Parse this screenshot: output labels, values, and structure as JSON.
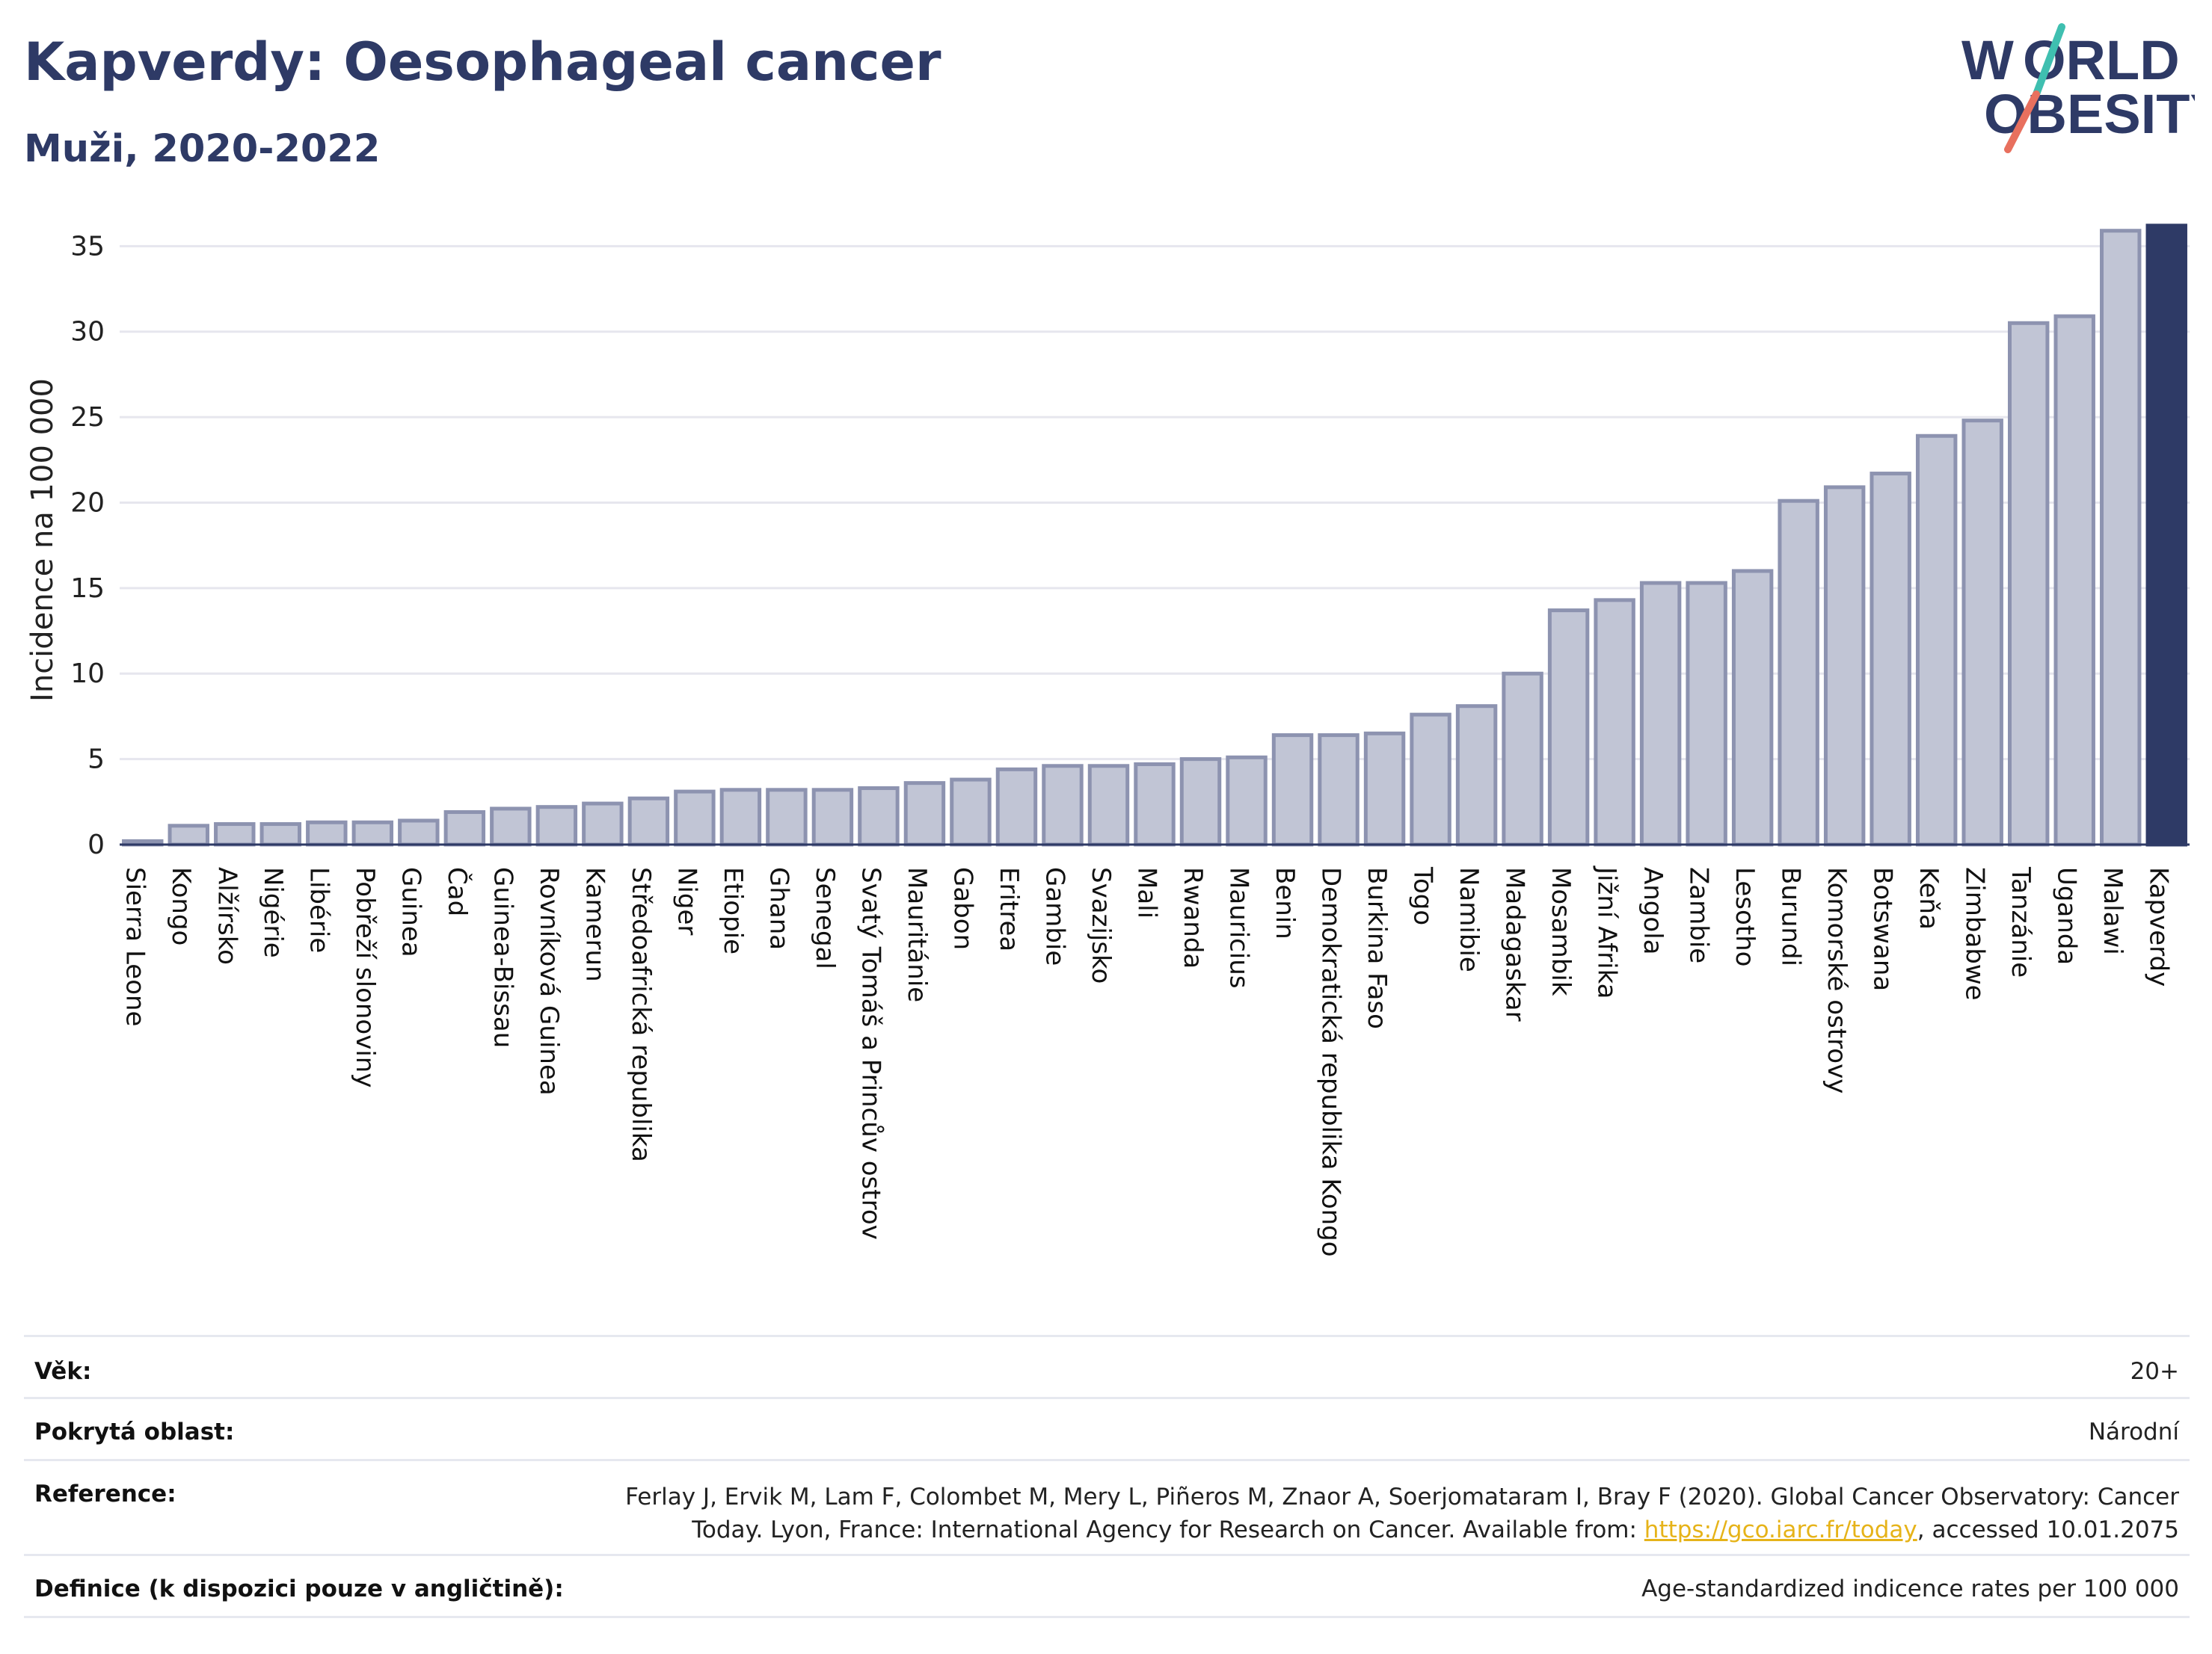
{
  "header": {
    "title": "Kapverdy: Oesophageal cancer",
    "subtitle": "Muži, 2020-2022"
  },
  "logo": {
    "line1": "WORLD",
    "line2": "OBESITY",
    "text_color": "#2e3a66",
    "accent_teal": "#3fbfb0",
    "accent_red": "#e8705e"
  },
  "colors": {
    "bar_fill": "#c1c5d5",
    "bar_stroke": "#8d93b0",
    "highlight": "#2e3a66",
    "grid": "#e6e6ee"
  },
  "chart_data": {
    "type": "bar",
    "ylabel": "Incidence na 100 000",
    "ylim": [
      0,
      36.5
    ],
    "yticks": [
      0,
      5,
      10,
      15,
      20,
      25,
      30,
      35
    ],
    "grid": true,
    "highlight_category": "Kapverdy",
    "categories": [
      "Sierra Leone",
      "Kongo",
      "Alžírsko",
      "Nigérie",
      "Libérie",
      "Pobřeží slonoviny",
      "Guinea",
      "Čad",
      "Guinea-Bissau",
      "Rovníková Guinea",
      "Kamerun",
      "Středoafrická republika",
      "Niger",
      "Etiopie",
      "Ghana",
      "Senegal",
      "Svatý Tomáš a Princův ostrov",
      "Mauritánie",
      "Gabon",
      "Eritrea",
      "Gambie",
      "Svazijsko",
      "Mali",
      "Rwanda",
      "Mauricius",
      "Benin",
      "Demokratická republika Kongo",
      "Burkina Faso",
      "Togo",
      "Namibie",
      "Madagaskar",
      "Mosambik",
      "Jižní Afrika",
      "Angola",
      "Zambie",
      "Lesotho",
      "Burundi",
      "Komorské ostrovy",
      "Botswana",
      "Keňa",
      "Zimbabwe",
      "Tanzánie",
      "Uganda",
      "Malawi",
      "Kapverdy"
    ],
    "values": [
      0.2,
      1.1,
      1.2,
      1.2,
      1.3,
      1.3,
      1.4,
      1.9,
      2.1,
      2.2,
      2.4,
      2.7,
      3.1,
      3.2,
      3.2,
      3.2,
      3.3,
      3.6,
      3.8,
      4.4,
      4.6,
      4.6,
      4.7,
      5.0,
      5.1,
      6.4,
      6.4,
      6.5,
      7.6,
      8.1,
      10.0,
      13.7,
      14.3,
      15.3,
      15.3,
      16.0,
      20.1,
      20.9,
      21.7,
      23.9,
      24.8,
      30.5,
      30.9,
      35.9,
      36.2
    ]
  },
  "metadata": [
    {
      "label": "Věk:",
      "value": "20+"
    },
    {
      "label": "Pokrytá oblast:",
      "value": "Národní"
    },
    {
      "label": "Reference:",
      "value_line1": "Ferlay J, Ervik M, Lam F, Colombet M, Mery L, Piñeros M, Znaor A, Soerjomataram I, Bray F (2020). Global Cancer Observatory: Cancer",
      "value_line2_prefix": "Today. Lyon, France: International Agency for Research on Cancer. Available from: ",
      "link": "https://gco.iarc.fr/today",
      "value_line2_suffix": ", accessed 10.01.2075"
    },
    {
      "label": "Definice (k dispozici pouze v angličtině):",
      "value": "Age-standardized indicence rates per 100 000"
    }
  ]
}
